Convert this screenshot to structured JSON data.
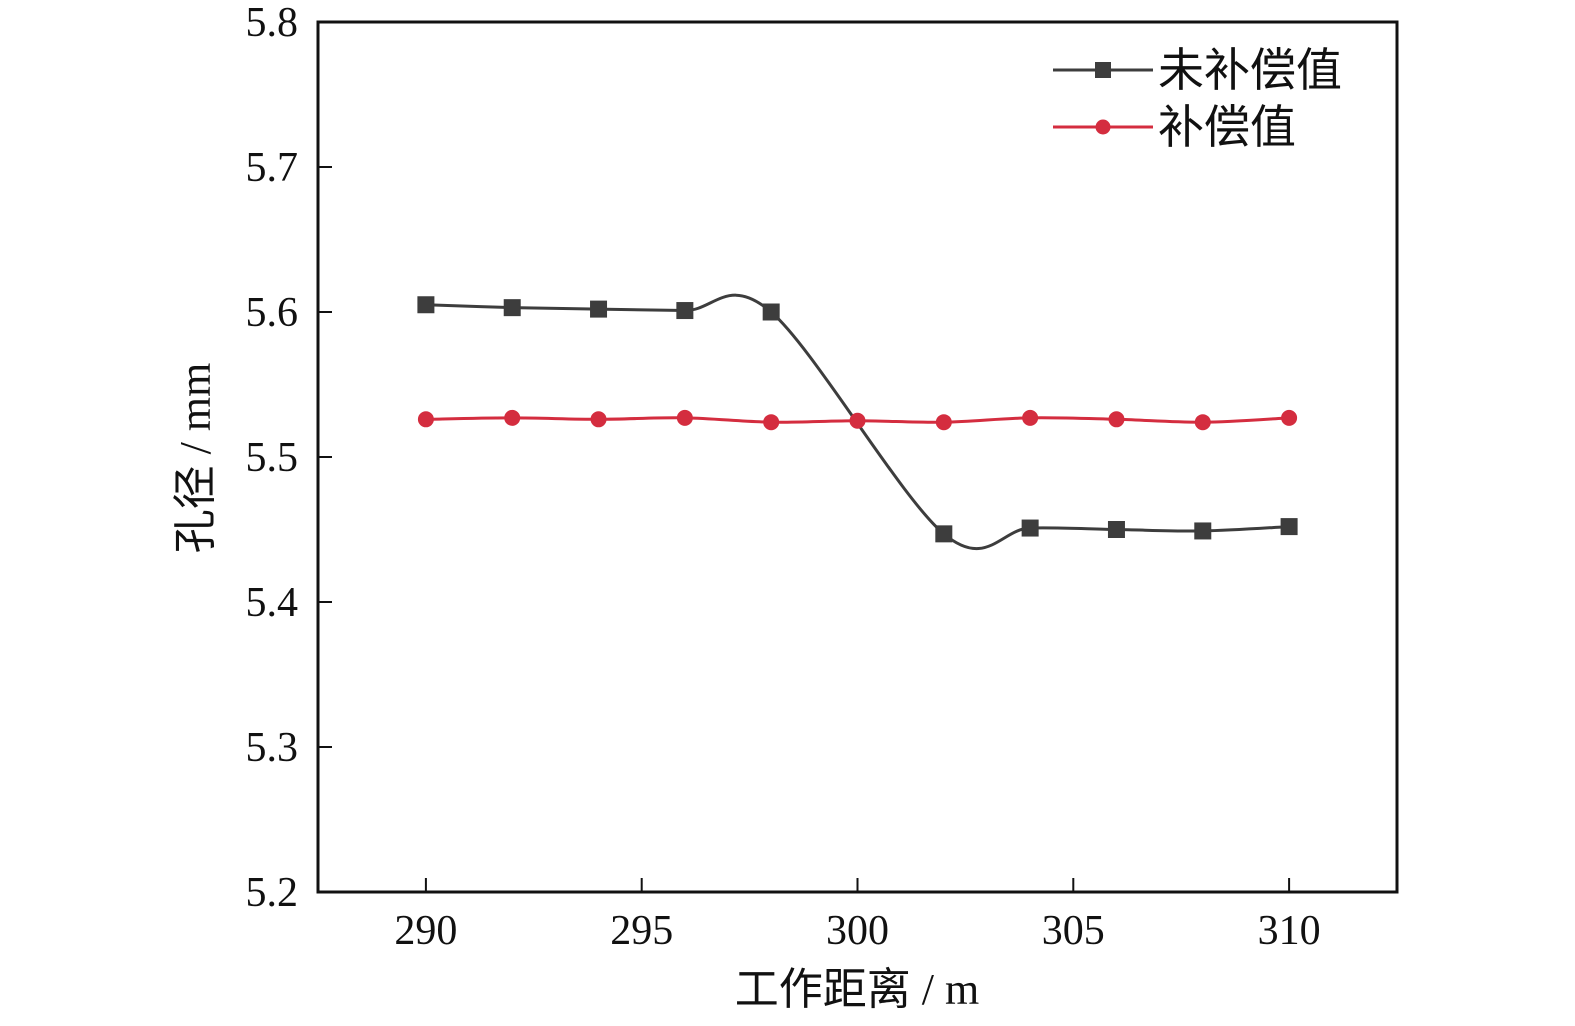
{
  "chart_data": {
    "type": "line",
    "title": "",
    "xlabel": "工作距离 / m",
    "ylabel": "孔径 / mm",
    "xlim": [
      287.5,
      312.5
    ],
    "ylim": [
      5.2,
      5.8
    ],
    "x_ticks": [
      290,
      295,
      300,
      305,
      310
    ],
    "x_tick_labels": [
      "290",
      "295",
      "300",
      "305",
      "310"
    ],
    "y_ticks": [
      5.2,
      5.3,
      5.4,
      5.5,
      5.6,
      5.7,
      5.8
    ],
    "y_tick_labels": [
      "5.2",
      "5.3",
      "5.4",
      "5.5",
      "5.6",
      "5.7",
      "5.8"
    ],
    "grid": false,
    "legend_position": "top-right",
    "x": [
      290,
      292,
      294,
      296,
      298,
      300,
      302,
      304,
      306,
      308,
      310
    ],
    "series": [
      {
        "name": "未补偿值",
        "color": "#3d3d3d",
        "marker": "square",
        "values": [
          5.605,
          5.603,
          5.602,
          5.601,
          5.6,
          null,
          5.447,
          5.451,
          5.45,
          5.449,
          5.452
        ]
      },
      {
        "name": "补偿值",
        "color": "#d42d3f",
        "marker": "circle",
        "values": [
          5.526,
          5.527,
          5.526,
          5.527,
          5.524,
          5.525,
          5.524,
          5.527,
          5.526,
          5.524,
          5.527
        ]
      }
    ]
  }
}
